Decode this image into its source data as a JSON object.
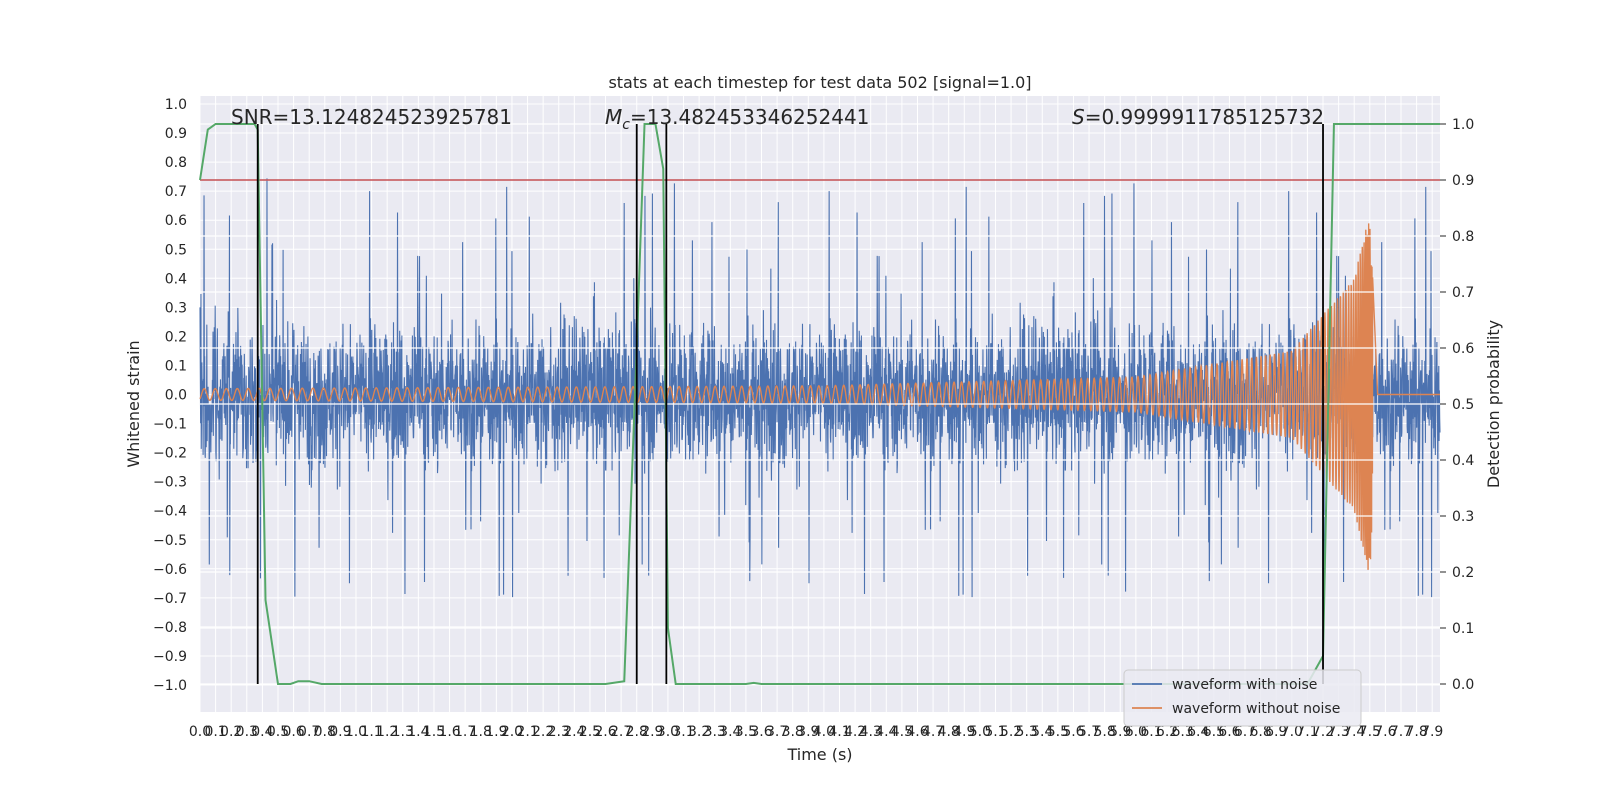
{
  "chart_data": {
    "type": "line",
    "title": "stats at each timestep for test data 502 [signal=1.0]",
    "xlabel": "Time (s)",
    "ylabel": "Whitened strain",
    "y2label": "Detection probability",
    "xlim": [
      0,
      7.95
    ],
    "ylim": [
      -1.09,
      1.02
    ],
    "y2lim": [
      -0.05,
      1.03
    ],
    "xticks": [
      "0.0",
      "0.1",
      "0.2",
      "0.3",
      "0.4",
      "0.5",
      "0.6",
      "0.7",
      "0.8",
      "0.9",
      "1.0",
      "1.1",
      "1.2",
      "1.3",
      "1.4",
      "1.5",
      "1.6",
      "1.7",
      "1.8",
      "1.9",
      "2.0",
      "2.1",
      "2.2",
      "2.3",
      "2.4",
      "2.5",
      "2.6",
      "2.7",
      "2.8",
      "2.9",
      "3.0",
      "3.1",
      "3.2",
      "3.3",
      "3.4",
      "3.5",
      "3.6",
      "3.7",
      "3.8",
      "3.9",
      "4.0",
      "4.1",
      "4.2",
      "4.3",
      "4.4",
      "4.5",
      "4.6",
      "4.7",
      "4.8",
      "4.9",
      "5.0",
      "5.1",
      "5.2",
      "5.3",
      "5.4",
      "5.5",
      "5.6",
      "5.7",
      "5.8",
      "5.9",
      "6.0",
      "6.1",
      "6.2",
      "6.3",
      "6.4",
      "6.5",
      "6.6",
      "6.7",
      "6.8",
      "6.9",
      "7.0",
      "7.1",
      "7.2",
      "7.3",
      "7.4",
      "7.5",
      "7.6",
      "7.7",
      "7.8",
      "7.9"
    ],
    "yticks": [
      "1.0",
      "0.9",
      "0.8",
      "0.7",
      "0.6",
      "0.5",
      "0.4",
      "0.3",
      "0.2",
      "0.1",
      "0.0",
      "−0.1",
      "−0.2",
      "−0.3",
      "−0.4",
      "−0.5",
      "−0.6",
      "−0.7",
      "−0.8",
      "−0.9",
      "−1.0"
    ],
    "y2ticks": [
      "1.0",
      "0.9",
      "0.8",
      "0.7",
      "0.6",
      "0.5",
      "0.4",
      "0.3",
      "0.2",
      "0.1",
      "0.0"
    ],
    "annotations": {
      "snr": "SNR=13.124824523925781",
      "mc_symbol": "M",
      "mc_sub": "c",
      "mc_value": "=13.482453346252441",
      "s_symbol": "S",
      "s_value": "=0.9999911785125732"
    },
    "threshold_probability": 0.9,
    "noise_band": {
      "upper_typical": 0.35,
      "lower_typical": -0.43,
      "max": 0.8,
      "min": -1.0
    },
    "vertical_lines_s": [
      0.37,
      2.8,
      2.99,
      7.2
    ],
    "series": [
      {
        "name": "waveform with noise",
        "color": "#4c72b0"
      },
      {
        "name": "waveform without noise",
        "color": "#dd8452",
        "amplitude_envelope": [
          [
            0.0,
            0.02
          ],
          [
            4.0,
            0.03
          ],
          [
            6.0,
            0.06
          ],
          [
            7.0,
            0.15
          ],
          [
            7.4,
            0.4
          ],
          [
            7.5,
            0.63
          ],
          [
            7.55,
            0.0
          ]
        ],
        "merger_s": 7.52
      },
      {
        "name": "detection probability",
        "color": "#55a868",
        "axis": "right",
        "points": [
          [
            0.0,
            0.9
          ],
          [
            0.05,
            0.99
          ],
          [
            0.1,
            1.0
          ],
          [
            0.35,
            1.0
          ],
          [
            0.37,
            0.99
          ],
          [
            0.42,
            0.15
          ],
          [
            0.5,
            0.0
          ],
          [
            0.58,
            0.0
          ],
          [
            0.63,
            0.005
          ],
          [
            0.7,
            0.005
          ],
          [
            0.78,
            0.0
          ],
          [
            1.5,
            0.0
          ],
          [
            2.6,
            0.0
          ],
          [
            2.72,
            0.005
          ],
          [
            2.8,
            0.6
          ],
          [
            2.85,
            1.0
          ],
          [
            2.92,
            1.0
          ],
          [
            2.97,
            0.92
          ],
          [
            3.0,
            0.1
          ],
          [
            3.05,
            0.0
          ],
          [
            3.5,
            0.0
          ],
          [
            3.55,
            0.002
          ],
          [
            3.6,
            0.0
          ],
          [
            7.0,
            0.0
          ],
          [
            7.1,
            0.0
          ],
          [
            7.2,
            0.05
          ],
          [
            7.27,
            1.0
          ],
          [
            7.95,
            1.0
          ]
        ]
      }
    ],
    "legend": {
      "location": "lower right",
      "entries": [
        "waveform with noise",
        "waveform without noise"
      ]
    }
  }
}
